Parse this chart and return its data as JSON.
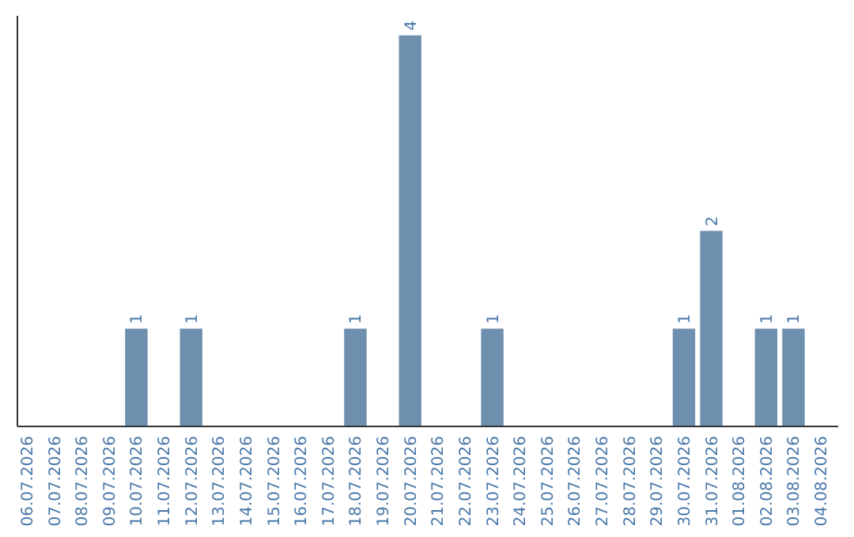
{
  "chart_data": {
    "type": "bar",
    "categories": [
      "06.07.2026",
      "07.07.2026",
      "08.07.2026",
      "09.07.2026",
      "10.07.2026",
      "11.07.2026",
      "12.07.2026",
      "13.07.2026",
      "14.07.2026",
      "15.07.2026",
      "16.07.2026",
      "17.07.2026",
      "18.07.2026",
      "19.07.2026",
      "20.07.2026",
      "21.07.2026",
      "22.07.2026",
      "23.07.2026",
      "24.07.2026",
      "25.07.2026",
      "26.07.2026",
      "27.07.2026",
      "28.07.2026",
      "29.07.2026",
      "30.07.2026",
      "31.07.2026",
      "01.08.2026",
      "02.08.2026",
      "03.08.2026",
      "04.08.2026"
    ],
    "values": [
      0,
      0,
      0,
      0,
      1,
      0,
      1,
      0,
      0,
      0,
      0,
      0,
      1,
      0,
      4,
      0,
      0,
      1,
      0,
      0,
      0,
      0,
      0,
      0,
      1,
      2,
      0,
      1,
      1,
      0
    ],
    "value_labels": [
      null,
      null,
      null,
      null,
      "1",
      null,
      "1",
      null,
      null,
      null,
      null,
      null,
      "1",
      null,
      "4",
      null,
      null,
      "1",
      null,
      null,
      null,
      null,
      null,
      null,
      "1",
      "2",
      null,
      "1",
      "1",
      null
    ],
    "color": "#6f8fae",
    "ylim": [
      0,
      4.2
    ],
    "tick_labels": "x"
  }
}
